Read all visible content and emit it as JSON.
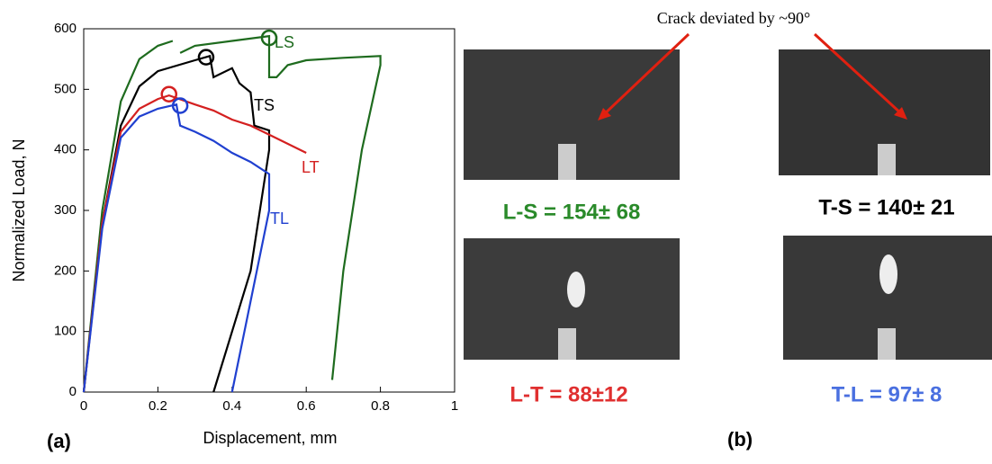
{
  "chart_data": {
    "type": "line",
    "panel_label": "(a)",
    "x_label": "Displacement, mm",
    "y_label": "Normalized Load, N",
    "xlim": [
      0,
      1
    ],
    "ylim": [
      0,
      600
    ],
    "xticks": [
      0,
      0.2,
      0.4,
      0.6,
      0.8,
      1
    ],
    "yticks": [
      0,
      100,
      200,
      300,
      400,
      500,
      600
    ],
    "series": [
      {
        "name": "LS",
        "color": "#1e6b1e",
        "marker": {
          "x": 0.5,
          "y": 585
        },
        "x": [
          0,
          0.05,
          0.1,
          0.15,
          0.2,
          0.24,
          0.25,
          0.26,
          0.3,
          0.4,
          0.5,
          0.5,
          0.52,
          0.55,
          0.6,
          0.7,
          0.8,
          0.8,
          0.75,
          0.7,
          0.67
        ],
        "values": [
          0,
          300,
          480,
          550,
          572,
          580,
          null,
          560,
          572,
          580,
          588,
          520,
          520,
          540,
          548,
          552,
          555,
          540,
          400,
          200,
          20
        ]
      },
      {
        "name": "TS",
        "color": "#000000",
        "marker": {
          "x": 0.33,
          "y": 553
        },
        "x": [
          0,
          0.05,
          0.1,
          0.15,
          0.2,
          0.3,
          0.34,
          0.35,
          0.4,
          0.42,
          0.45,
          0.46,
          0.5,
          0.5,
          0.45,
          0.4,
          0.35
        ],
        "values": [
          0,
          280,
          440,
          505,
          530,
          548,
          555,
          520,
          535,
          510,
          495,
          440,
          432,
          400,
          200,
          100,
          0
        ]
      },
      {
        "name": "LT",
        "color": "#d42020",
        "marker": {
          "x": 0.23,
          "y": 492
        },
        "x": [
          0,
          0.05,
          0.1,
          0.15,
          0.2,
          0.23,
          0.3,
          0.35,
          0.4,
          0.45,
          0.5,
          0.55,
          0.6
        ],
        "values": [
          0,
          280,
          430,
          468,
          484,
          490,
          475,
          465,
          450,
          440,
          425,
          410,
          395
        ]
      },
      {
        "name": "TL",
        "color": "#2040d0",
        "marker": {
          "x": 0.26,
          "y": 473
        },
        "x": [
          0,
          0.05,
          0.1,
          0.15,
          0.2,
          0.25,
          0.26,
          0.3,
          0.35,
          0.4,
          0.45,
          0.5,
          0.5,
          0.45,
          0.4
        ],
        "values": [
          0,
          270,
          420,
          455,
          468,
          475,
          440,
          430,
          415,
          395,
          380,
          360,
          300,
          150,
          0
        ]
      }
    ]
  },
  "photos": {
    "panel_label": "(b)",
    "annotation": "Crack deviated by ~90°",
    "labels": [
      "L-S = 154± 68",
      "T-S = 140± 21",
      "L-T = 88±12",
      "T-L = 97± 8"
    ]
  }
}
